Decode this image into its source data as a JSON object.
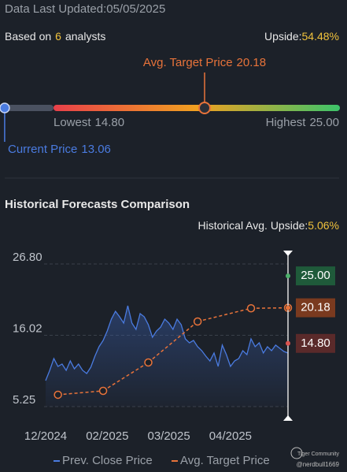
{
  "header": {
    "updated": "Data Last Updated:05/05/2025",
    "based_on": "Based on",
    "analyst_count": "6",
    "analysts": "analysts",
    "upside_label": "Upside:",
    "upside": "54.48%"
  },
  "range": {
    "current": {
      "label": "Current Price",
      "value": 13.06,
      "value_label": "13.06"
    },
    "lowest": {
      "label": "Lowest",
      "value": 14.8,
      "value_label": "14.80"
    },
    "avg": {
      "label": "Avg. Target Price",
      "value": 20.18,
      "value_label": "20.18"
    },
    "highest": {
      "label": "Highest",
      "value": 25,
      "value_label": "25.00"
    }
  },
  "chart_data": {
    "type": "line",
    "title": "Historical Forecasts Comparison",
    "subtitle_label": "Historical Avg. Upside:",
    "subtitle_value": "5.06%",
    "categories": [
      "12/2024",
      null,
      null,
      null,
      null,
      null,
      null,
      null,
      null,
      null,
      null,
      null,
      null,
      null,
      null,
      "02/2025",
      null,
      null,
      null,
      null,
      null,
      null,
      null,
      null,
      null,
      null,
      null,
      null,
      null,
      null,
      "03/2025",
      null,
      null,
      null,
      null,
      null,
      null,
      null,
      null,
      null,
      null,
      null,
      null,
      null,
      null,
      "04/2025",
      null,
      null,
      null,
      null,
      null,
      null,
      null,
      null,
      null,
      null,
      null,
      null,
      null,
      null
    ],
    "ylim": [
      5.25,
      26.8
    ],
    "yticks": [
      {
        "value": 26.8,
        "label": "26.80"
      },
      16.02,
      5.25
    ],
    "grid": true,
    "series": [
      {
        "name": "Prev. Close Price",
        "color": "#4a7be0",
        "values": [
          9.18,
          10.73,
          12.51,
          11.32,
          11.68,
          10.73,
          12.15,
          10.96,
          11.68,
          10.73,
          10.25,
          11.2,
          12.87,
          14.3,
          15.25,
          16.68,
          18.46,
          19.65,
          18.82,
          17.87,
          20.49,
          17.87,
          16.92,
          19.3,
          18.82,
          17.63,
          15.73,
          16.68,
          17.27,
          18.46,
          17.87,
          16.92,
          18.46,
          17.63,
          15.49,
          14.89,
          15.25,
          14.3,
          13.7,
          12.87,
          12.15,
          13.35,
          11.32,
          14.54,
          13.11,
          11.32,
          12.15,
          12.51,
          13.7,
          13.11,
          15.49,
          14.3,
          14.89,
          13.35,
          14.3,
          13.7,
          14.54,
          14.06,
          13.58,
          13.35
        ]
      },
      {
        "name": "Avg. Target Price",
        "color": "#e8733a",
        "values": [
          null,
          null,
          null,
          7.04,
          null,
          null,
          null,
          null,
          null,
          null,
          null,
          null,
          null,
          null,
          7.63,
          null,
          null,
          null,
          null,
          null,
          null,
          null,
          null,
          null,
          null,
          11.92,
          null,
          null,
          null,
          null,
          null,
          null,
          null,
          null,
          null,
          null,
          null,
          18.11,
          null,
          null,
          null,
          null,
          null,
          null,
          null,
          null,
          null,
          null,
          null,
          null,
          20.1,
          null,
          null,
          null,
          null,
          null,
          null,
          null,
          null,
          20.18
        ]
      }
    ],
    "markers": {
      "values": [
        25,
        20.18,
        14.8
      ],
      "value_labels": [
        "25.00",
        "20.18",
        "14.80"
      ],
      "colors": [
        "#1f5a3a",
        "#7a3a1f",
        "#5a2a2a"
      ],
      "dot_colors": [
        "#4caf6a",
        "#e8733a",
        "#d9534f"
      ]
    },
    "watermark": "Tiger Community",
    "author": "@nerdbull1669"
  }
}
